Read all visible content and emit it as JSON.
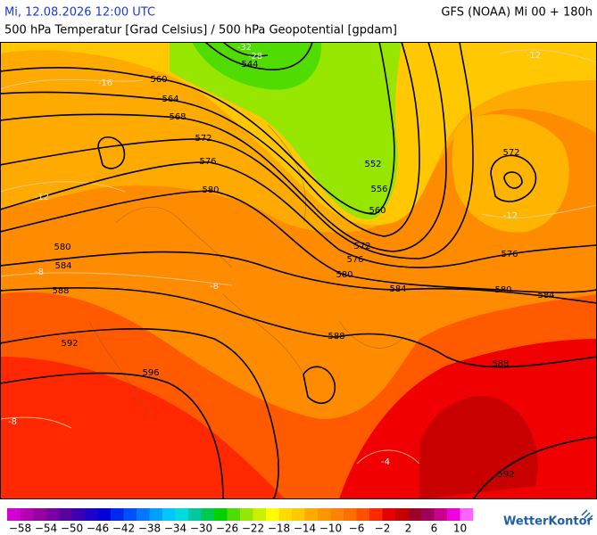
{
  "header": {
    "datetime": "Mi, 12.08.2026 12:00 UTC",
    "model": "GFS (NOAA) Mi 00 + 180h",
    "subtitle": "500 hPa Temperatur [Grad Celsius] / 500 hPa Geopotential [gpdam]"
  },
  "geopotential_labels": [
    560,
    564,
    568,
    572,
    576,
    580,
    580,
    584,
    588,
    592,
    596,
    544,
    552,
    556,
    560,
    572,
    576,
    580,
    584,
    588,
    588,
    592,
    572,
    576,
    580,
    584
  ],
  "temperature_labels": [
    -32,
    -28,
    -16,
    -12,
    -12,
    -12,
    -8,
    -8,
    -8,
    -4
  ],
  "colorbar": {
    "lim": [
      -60,
      12
    ],
    "colors": [
      "#d200d2",
      "#b400b4",
      "#9600a0",
      "#7800a0",
      "#5a00a0",
      "#3c00b4",
      "#1e00c8",
      "#0000dc",
      "#0028f0",
      "#0050ff",
      "#0078ff",
      "#00a0ff",
      "#00c8ff",
      "#00dcdc",
      "#00c8a0",
      "#00c850",
      "#00d200",
      "#50dc00",
      "#96e600",
      "#c8f000",
      "#ffff00",
      "#ffdc00",
      "#ffc800",
      "#ffaa00",
      "#ff9600",
      "#ff8200",
      "#ff6e00",
      "#ff5000",
      "#ff2800",
      "#e60000",
      "#c80000",
      "#a00028",
      "#a0005a",
      "#c8008c",
      "#f000dc",
      "#ff64ff"
    ],
    "ticks": [
      {
        "value": -58,
        "label": "−58"
      },
      {
        "value": -54,
        "label": "−54"
      },
      {
        "value": -50,
        "label": "−50"
      },
      {
        "value": -46,
        "label": "−46"
      },
      {
        "value": -42,
        "label": "−42"
      },
      {
        "value": -38,
        "label": "−38"
      },
      {
        "value": -34,
        "label": "−34"
      },
      {
        "value": -30,
        "label": "−30"
      },
      {
        "value": -26,
        "label": "−26"
      },
      {
        "value": -22,
        "label": "−22"
      },
      {
        "value": -18,
        "label": "−18"
      },
      {
        "value": -14,
        "label": "−14"
      },
      {
        "value": -10,
        "label": "−10"
      },
      {
        "value": -6,
        "label": "−6"
      },
      {
        "value": -2,
        "label": "−2"
      },
      2,
      6,
      10
    ]
  },
  "logo": "WetterKontor"
}
